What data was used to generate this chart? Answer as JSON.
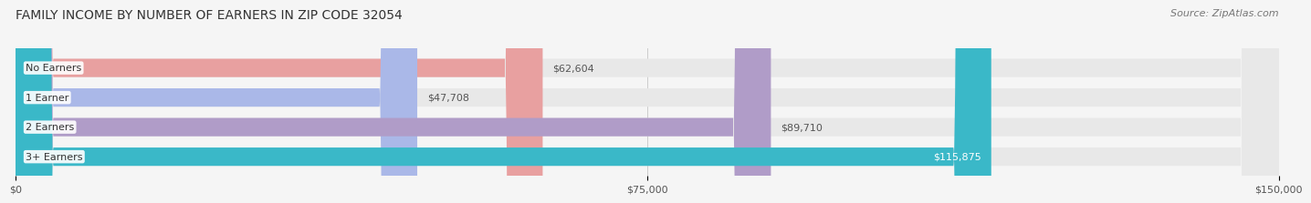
{
  "title": "FAMILY INCOME BY NUMBER OF EARNERS IN ZIP CODE 32054",
  "source": "Source: ZipAtlas.com",
  "categories": [
    "No Earners",
    "1 Earner",
    "2 Earners",
    "3+ Earners"
  ],
  "values": [
    62604,
    47708,
    89710,
    115875
  ],
  "bar_colors": [
    "#e8a0a0",
    "#aab8e8",
    "#b09cc8",
    "#3ab8c8"
  ],
  "value_labels": [
    "$62,604",
    "$47,708",
    "$89,710",
    "$115,875"
  ],
  "value_label_inside": [
    false,
    false,
    false,
    true
  ],
  "xlim": [
    0,
    150000
  ],
  "xticks": [
    0,
    75000,
    150000
  ],
  "xtick_labels": [
    "$0",
    "$75,000",
    "$150,000"
  ],
  "bar_height": 0.62,
  "background_color": "#f5f5f5",
  "bar_bg_color": "#e8e8e8",
  "title_fontsize": 10,
  "source_fontsize": 8,
  "label_fontsize": 8,
  "value_fontsize": 8
}
